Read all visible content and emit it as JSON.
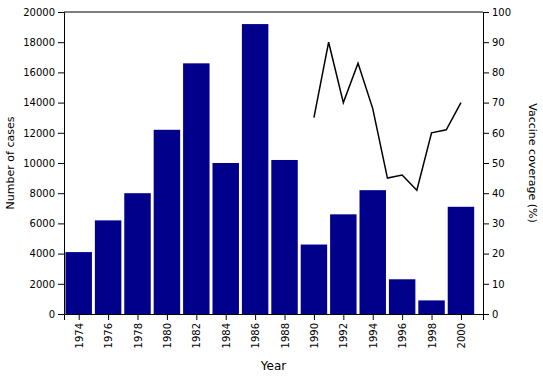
{
  "chart_data": {
    "type": "bar",
    "xlabel": "Year",
    "ylabel": "Number of cases",
    "y2label": "Vaccine coverage (%)",
    "xlim": [
      1973,
      2001.5
    ],
    "xticks": [
      1974,
      1976,
      1978,
      1980,
      1982,
      1984,
      1986,
      1988,
      1990,
      1992,
      1994,
      1996,
      1998,
      2000
    ],
    "ylim": [
      0,
      20000
    ],
    "yticks": [
      0,
      2000,
      4000,
      6000,
      8000,
      10000,
      12000,
      14000,
      16000,
      18000,
      20000
    ],
    "y2lim": [
      0,
      100
    ],
    "y2ticks": [
      0,
      10,
      20,
      30,
      40,
      50,
      60,
      70,
      80,
      90,
      100
    ],
    "series": [
      {
        "type": "bar",
        "color": "#00008B",
        "x": [
          1974,
          1976,
          1978,
          1980,
          1982,
          1984,
          1986,
          1988,
          1990,
          1992,
          1994,
          1996,
          1998,
          2000
        ],
        "values": [
          4100,
          6200,
          8000,
          12200,
          16600,
          10000,
          19200,
          10200,
          4600,
          6600,
          8200,
          2300,
          900,
          7100
        ]
      },
      {
        "type": "line",
        "color": "#000000",
        "axis": "y2",
        "x": [
          1990,
          1991,
          1992,
          1993,
          1994,
          1995,
          1996,
          1997,
          1998,
          1999,
          2000
        ],
        "values": [
          65,
          90,
          70,
          83,
          68,
          45,
          46,
          41,
          60,
          61,
          70
        ]
      }
    ]
  }
}
